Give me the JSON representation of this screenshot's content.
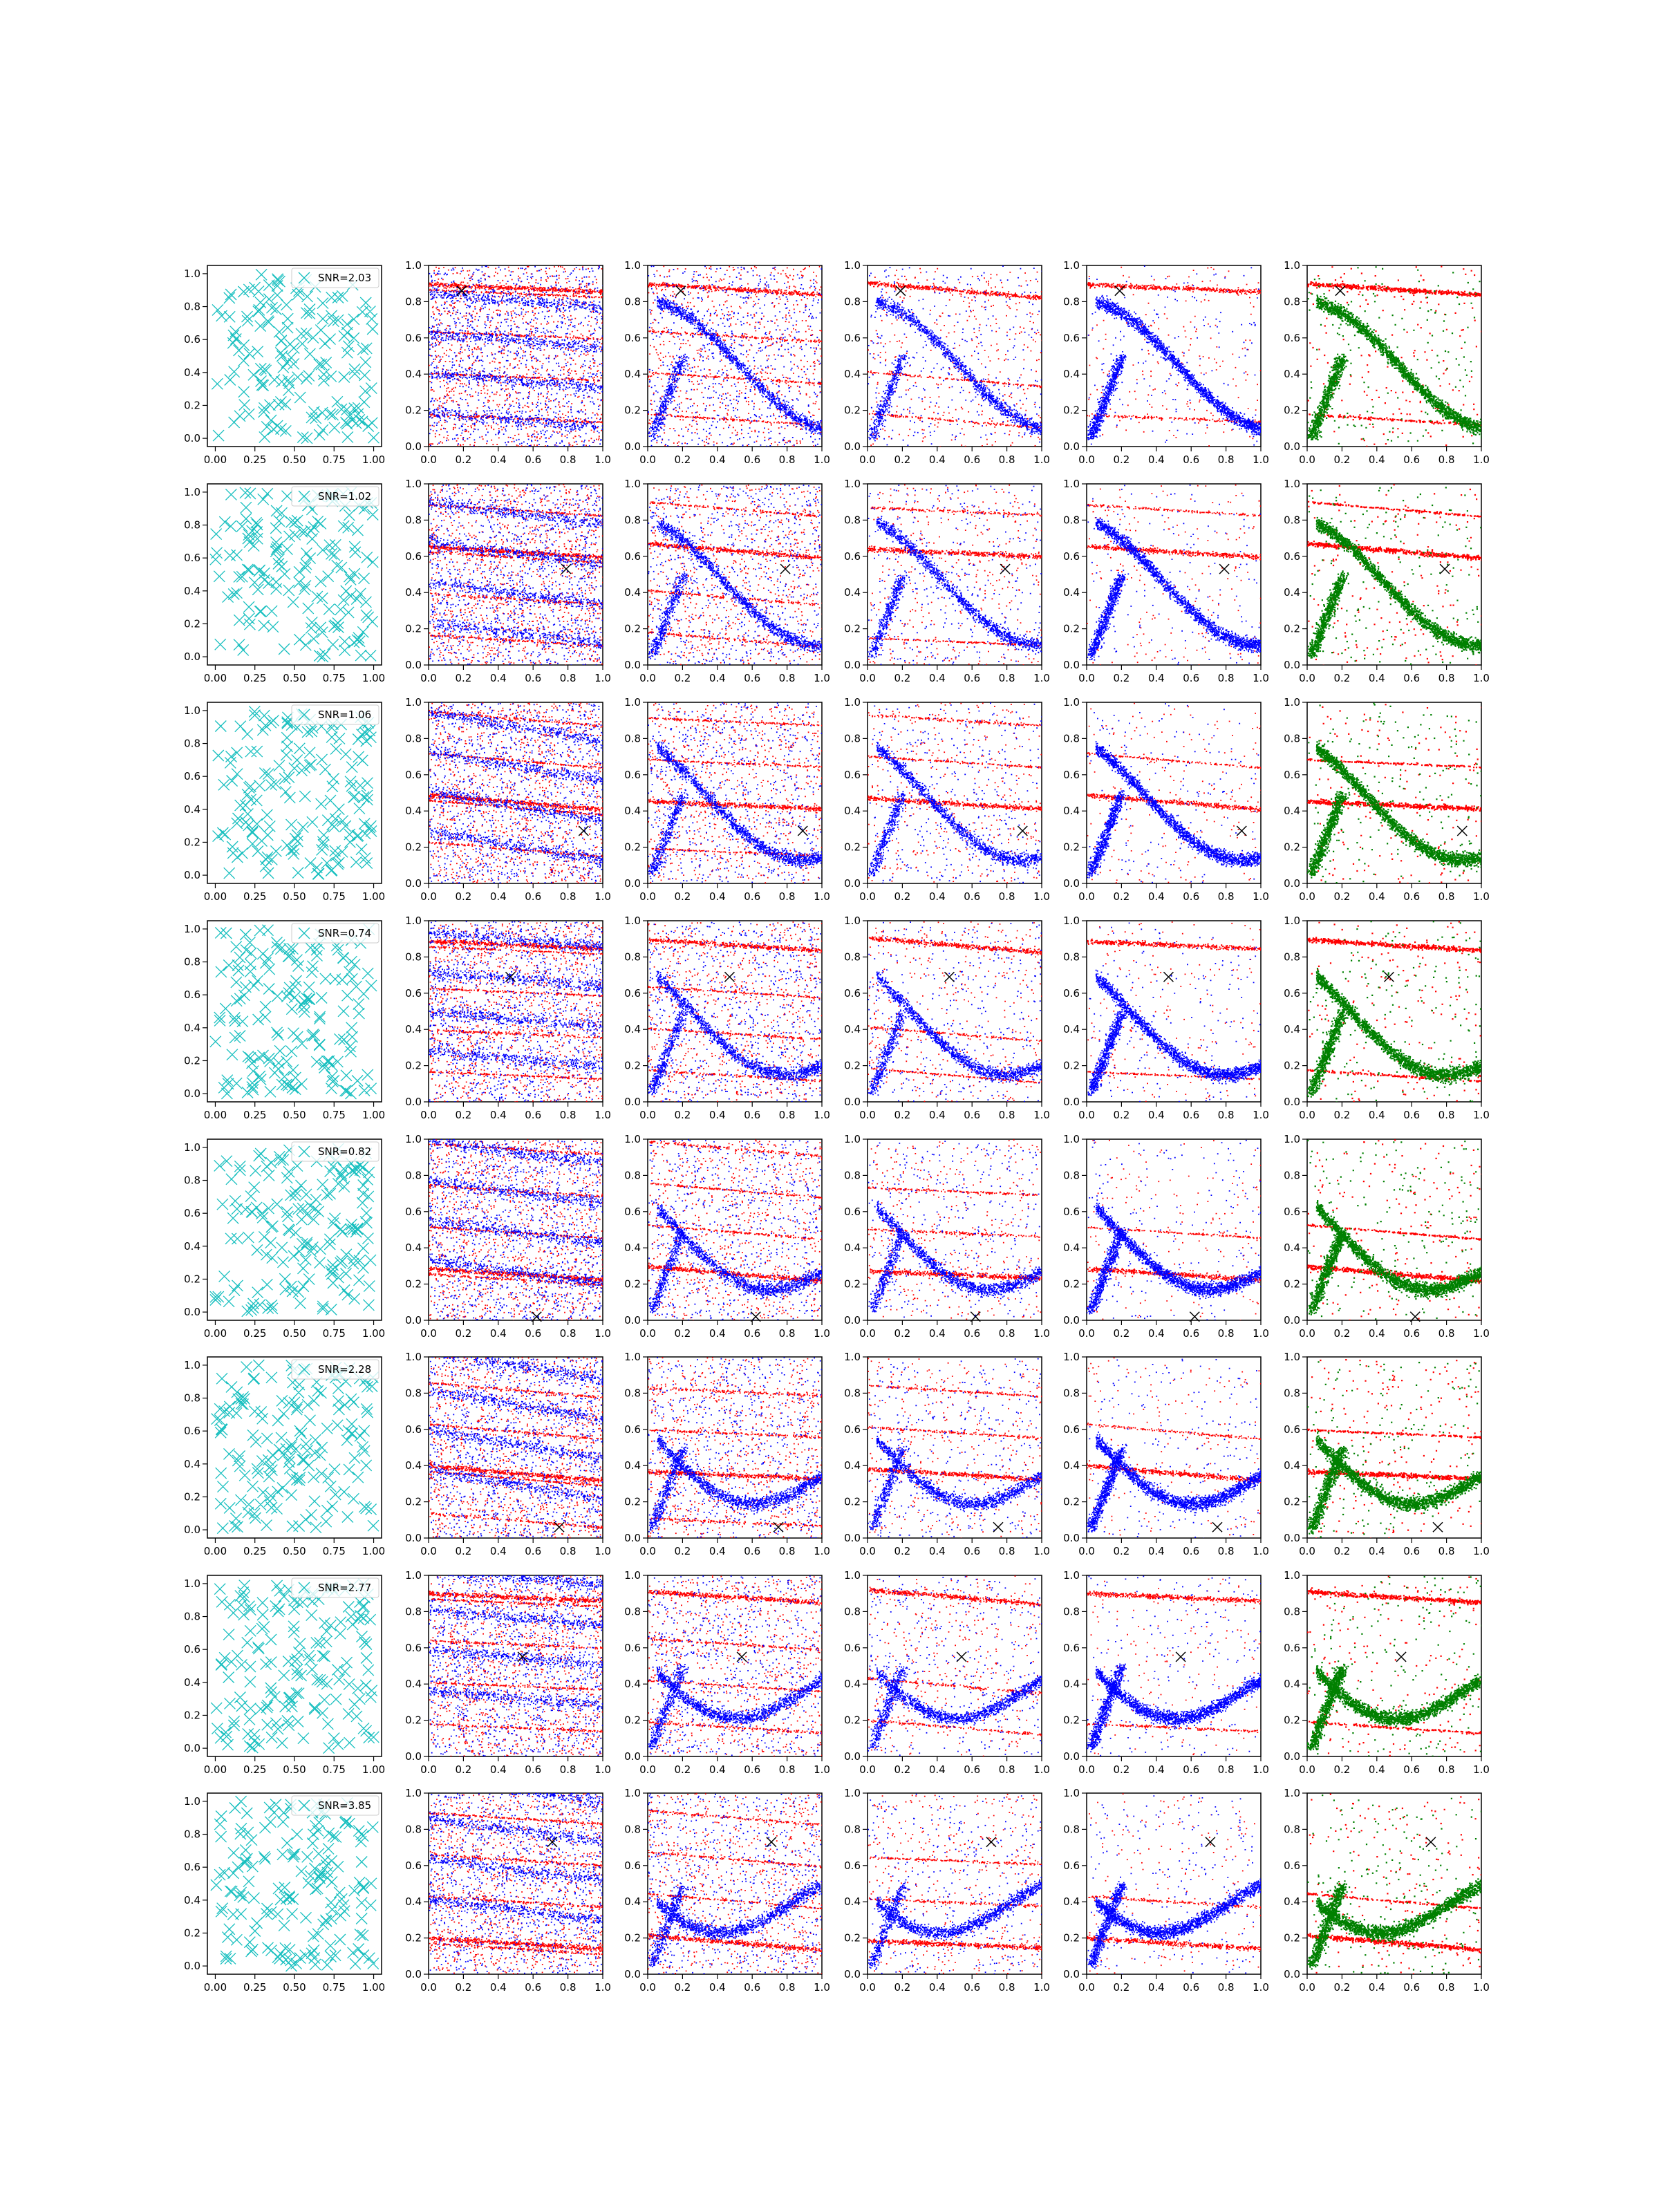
{
  "chart_data": {
    "type": "scatter",
    "grid": false,
    "layout": "8 rows x 6 columns of scatter panels",
    "colors": {
      "sample_marker": "#17bfbf",
      "blue_points": "#0000ff",
      "red_points": "#ff0000",
      "green_points": "#008000",
      "location_marker": "#000000"
    },
    "first_column": {
      "type": "scatter",
      "marker": "x",
      "xlim": [
        -0.05,
        1.05
      ],
      "ylim": [
        -0.05,
        1.05
      ],
      "xticks": [
        "0.00",
        "0.25",
        "0.50",
        "0.75",
        "1.00"
      ],
      "yticks": [
        "0.0",
        "0.2",
        "0.4",
        "0.6",
        "0.8",
        "1.0"
      ],
      "legend_placement": "upper right"
    },
    "other_columns": {
      "type": "scatter",
      "xlim": [
        0,
        1
      ],
      "ylim": [
        0,
        1
      ],
      "xticks": [
        "0.0",
        "0.2",
        "0.4",
        "0.6",
        "0.8",
        "1.0"
      ],
      "yticks": [
        "0.0",
        "0.2",
        "0.4",
        "0.6",
        "0.8",
        "1.0"
      ],
      "column_colors": [
        [
          "blue",
          "red"
        ],
        [
          "blue",
          "red"
        ],
        [
          "blue",
          "red"
        ],
        [
          "blue",
          "red"
        ],
        [
          "green",
          "red"
        ]
      ]
    },
    "rows": [
      {
        "legend": "SNR=2.03",
        "x_marker": [
          0.19,
          0.86
        ]
      },
      {
        "legend": "SNR=1.02",
        "x_marker": [
          0.79,
          0.53
        ]
      },
      {
        "legend": "SNR=1.06",
        "x_marker": [
          0.89,
          0.29
        ]
      },
      {
        "legend": "SNR=0.74",
        "x_marker": [
          0.47,
          0.69
        ]
      },
      {
        "legend": "SNR=0.82",
        "x_marker": [
          0.62,
          0.02
        ]
      },
      {
        "legend": "SNR=2.28",
        "x_marker": [
          0.75,
          0.06
        ]
      },
      {
        "legend": "SNR=2.77",
        "x_marker": [
          0.54,
          0.55
        ]
      },
      {
        "legend": "SNR=3.85",
        "x_marker": [
          0.71,
          0.73
        ]
      }
    ]
  }
}
